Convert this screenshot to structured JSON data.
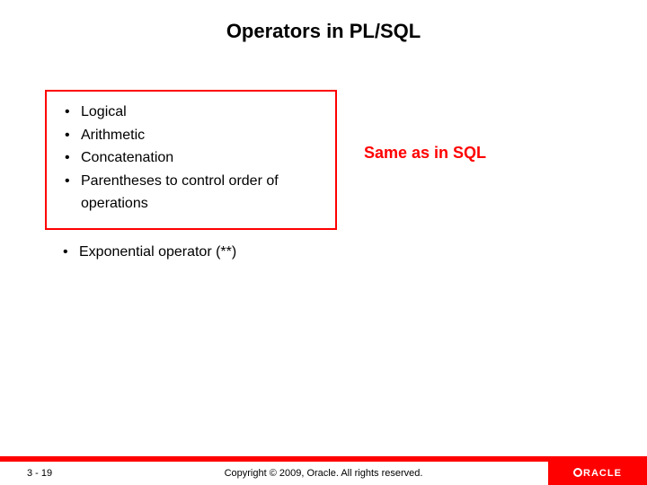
{
  "slide": {
    "title": "Operators in PL/SQL",
    "boxed_items": [
      "Logical",
      "Arithmetic",
      "Concatenation",
      "Parentheses to control order of operations"
    ],
    "outside_items": [
      "Exponential operator (**)"
    ],
    "annotation": "Same as in SQL",
    "box_border_color": "#ff0000",
    "annotation_color": "#ff0000"
  },
  "footer": {
    "page_number": "3 - 19",
    "copyright": "Copyright © 2009, Oracle. All rights reserved.",
    "bar_color": "#ff0000",
    "logo_bg": "#ff0000",
    "logo_text": "RACLE"
  }
}
